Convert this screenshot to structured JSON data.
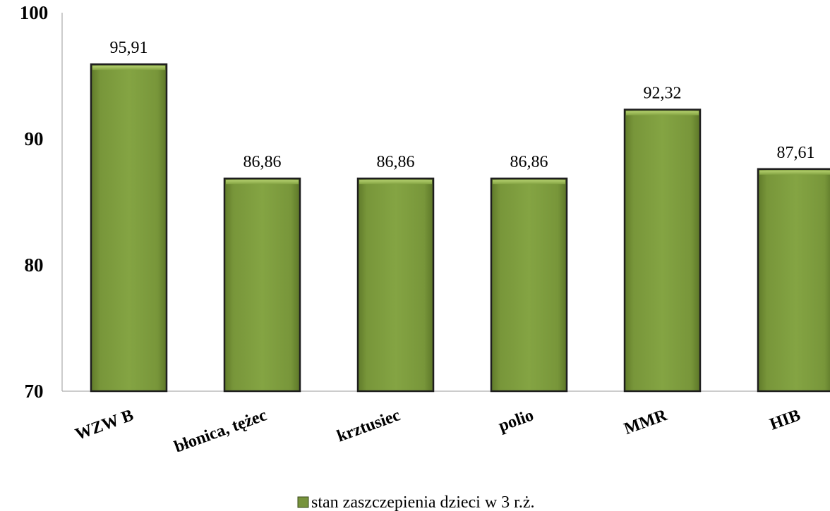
{
  "chart_data": {
    "type": "bar",
    "categories": [
      "WZW B",
      "błonica, tężec",
      "krztusiec",
      "polio",
      "MMR",
      "HIB"
    ],
    "series": [
      {
        "name": "stan zaszczepienia dzieci w 3 r.ż.",
        "values": [
          95.91,
          86.86,
          86.86,
          86.86,
          92.32,
          87.61
        ],
        "data_labels": [
          "95,91",
          "86,86",
          "86,86",
          "86,86",
          "92,32",
          "87,61"
        ],
        "color": "#77933c"
      }
    ],
    "ylim": [
      70,
      100
    ],
    "yticks": [
      70,
      80,
      90,
      100
    ],
    "ytick_labels": [
      "70",
      "80",
      "90",
      "100"
    ],
    "grid": false,
    "legend_position": "bottom",
    "xlabel": "",
    "ylabel": ""
  }
}
